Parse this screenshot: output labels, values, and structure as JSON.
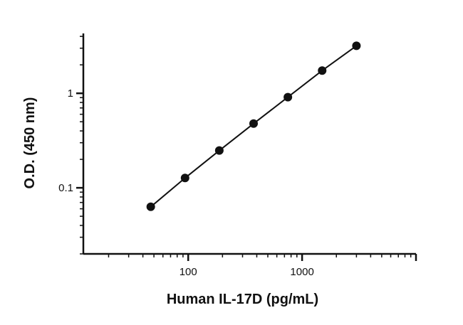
{
  "chart_data": {
    "type": "scatter",
    "title": "",
    "xlabel": "Human IL-17D (pg/mL)",
    "ylabel": "O.D. (450 nm)",
    "x_scale": "log",
    "y_scale": "log",
    "xlim": [
      12,
      10000
    ],
    "ylim": [
      0.02,
      4.3
    ],
    "x_ticks": [
      100,
      1000
    ],
    "x_tick_labels": [
      "100",
      "1000"
    ],
    "y_ticks": [
      0.1,
      1
    ],
    "y_tick_labels": [
      "0.1",
      "1"
    ],
    "grid": false,
    "legend": "none",
    "series": [
      {
        "x": [
          46.9,
          93.8,
          187.5,
          375,
          750,
          1500,
          3000
        ],
        "y": [
          0.063,
          0.127,
          0.248,
          0.478,
          0.91,
          1.74,
          3.18
        ],
        "fit_line": true
      }
    ],
    "colors": {
      "marker": "#111111",
      "line": "#111111",
      "axis": "#111111"
    }
  }
}
